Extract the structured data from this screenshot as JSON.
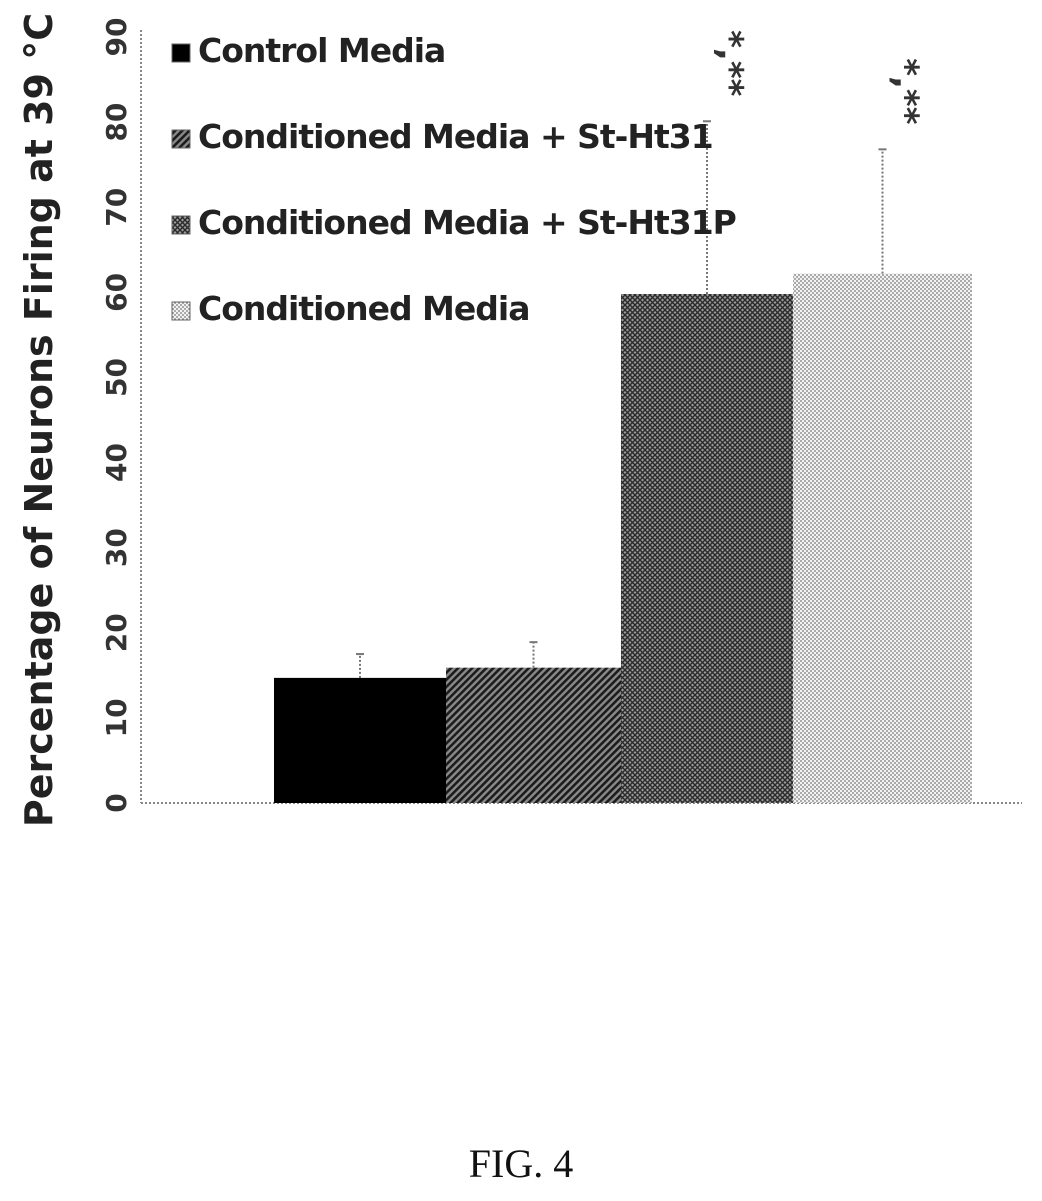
{
  "chart_data": {
    "type": "bar",
    "ylabel": "Percentage of Neurons Firing at 39 °C",
    "xlabel": "",
    "ylim": [
      0,
      90
    ],
    "yticks": [
      "0",
      "10",
      "20",
      "30",
      "40",
      "50",
      "60",
      "70",
      "80",
      "90"
    ],
    "grid": false,
    "legend_position": "top-left",
    "series": [
      {
        "name": "Control Media",
        "value": 14.7,
        "error": 2.8,
        "significance": "",
        "color": "#000000",
        "pattern": "solid"
      },
      {
        "name": "Conditioned Media + St-Ht31",
        "value": 15.9,
        "error": 3.0,
        "significance": "",
        "color": "#4a4a4a",
        "pattern": "diagonal"
      },
      {
        "name": "Conditioned Media + St-Ht31P",
        "value": 59.8,
        "error": 20.3,
        "significance": "*,**",
        "color": "#6e6e6e",
        "pattern": "crosshatch"
      },
      {
        "name": "Conditioned Media",
        "value": 62.2,
        "error": 14.6,
        "significance": "*,**",
        "color": "#c4c4c4",
        "pattern": "dots"
      }
    ]
  },
  "caption": "FIG. 4"
}
